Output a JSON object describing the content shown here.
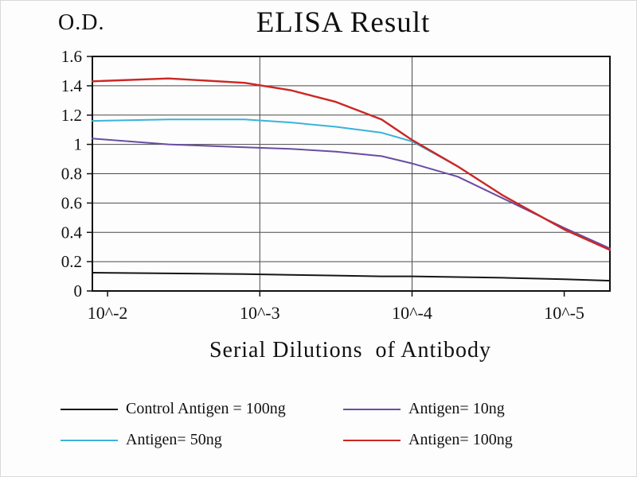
{
  "chart_data": {
    "type": "line",
    "title": "ELISA Result",
    "ylabel": "O.D.",
    "xlabel": "Serial Dilutions  of Antibody",
    "x_scale": "log10-exponent",
    "x_edge": [
      -1.9,
      -5.3
    ],
    "x_ticks": [
      -2,
      -3,
      -4,
      -5
    ],
    "x_tick_labels": [
      "10^-2",
      "10^-3",
      "10^-4",
      "10^-5"
    ],
    "x_grid_ticks": [
      -3,
      -4
    ],
    "ylim": [
      0,
      1.6
    ],
    "y_ticks": [
      0,
      0.2,
      0.4,
      0.6,
      0.8,
      1.0,
      1.2,
      1.4,
      1.6
    ],
    "y_tick_labels": [
      "0",
      "0.2",
      "0.4",
      "0.6",
      "0.8",
      "1",
      "1.2",
      "1.4",
      "1.6"
    ],
    "grid": true,
    "legend_position": "bottom",
    "x": [
      -1.9,
      -2.4,
      -2.9,
      -3.2,
      -3.5,
      -3.8,
      -4.0,
      -4.3,
      -4.6,
      -5.0,
      -5.3
    ],
    "series": [
      {
        "name": "Control Antigen = 100ng",
        "color": "#161616",
        "width": 2,
        "values": [
          0.125,
          0.12,
          0.115,
          0.11,
          0.105,
          0.1,
          0.1,
          0.095,
          0.09,
          0.08,
          0.07
        ]
      },
      {
        "name": "Antigen= 10ng",
        "color": "#6a4ca3",
        "width": 2,
        "values": [
          1.04,
          1.0,
          0.98,
          0.97,
          0.95,
          0.92,
          0.87,
          0.78,
          0.63,
          0.43,
          0.29
        ]
      },
      {
        "name": "Antigen= 50ng",
        "color": "#39b3da",
        "width": 2,
        "values": [
          1.16,
          1.17,
          1.17,
          1.15,
          1.12,
          1.08,
          1.02,
          0.85,
          0.65,
          0.42,
          0.28
        ]
      },
      {
        "name": "Antigen= 100ng",
        "color": "#cc2724",
        "width": 2.4,
        "values": [
          1.43,
          1.45,
          1.42,
          1.37,
          1.29,
          1.17,
          1.03,
          0.85,
          0.65,
          0.42,
          0.28
        ]
      }
    ]
  }
}
